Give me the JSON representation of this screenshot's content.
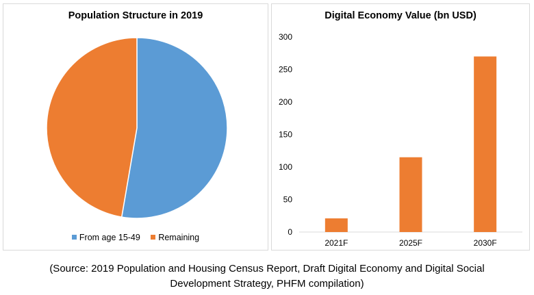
{
  "chart_data": [
    {
      "type": "pie",
      "title": "Population Structure in 2019",
      "categories": [
        "From age 15-49",
        "Remaining"
      ],
      "values": [
        52.7,
        47.3
      ],
      "colors": [
        "#5b9bd5",
        "#ed7d31"
      ],
      "legend_position": "bottom"
    },
    {
      "type": "bar",
      "title": "Digital Economy Value (bn USD)",
      "categories": [
        "2021F",
        "2025F",
        "2030F"
      ],
      "values": [
        21,
        115,
        270
      ],
      "ylim": [
        0,
        300
      ],
      "yticks": [
        0,
        50,
        100,
        150,
        200,
        250,
        300
      ],
      "color": "#ed7d31",
      "grid": false
    }
  ],
  "caption": {
    "line1": "(Source: 2019 Population and Housing Census Report, Draft Digital Economy and Digital Social",
    "line2": "Development Strategy, PHFM compilation)"
  }
}
